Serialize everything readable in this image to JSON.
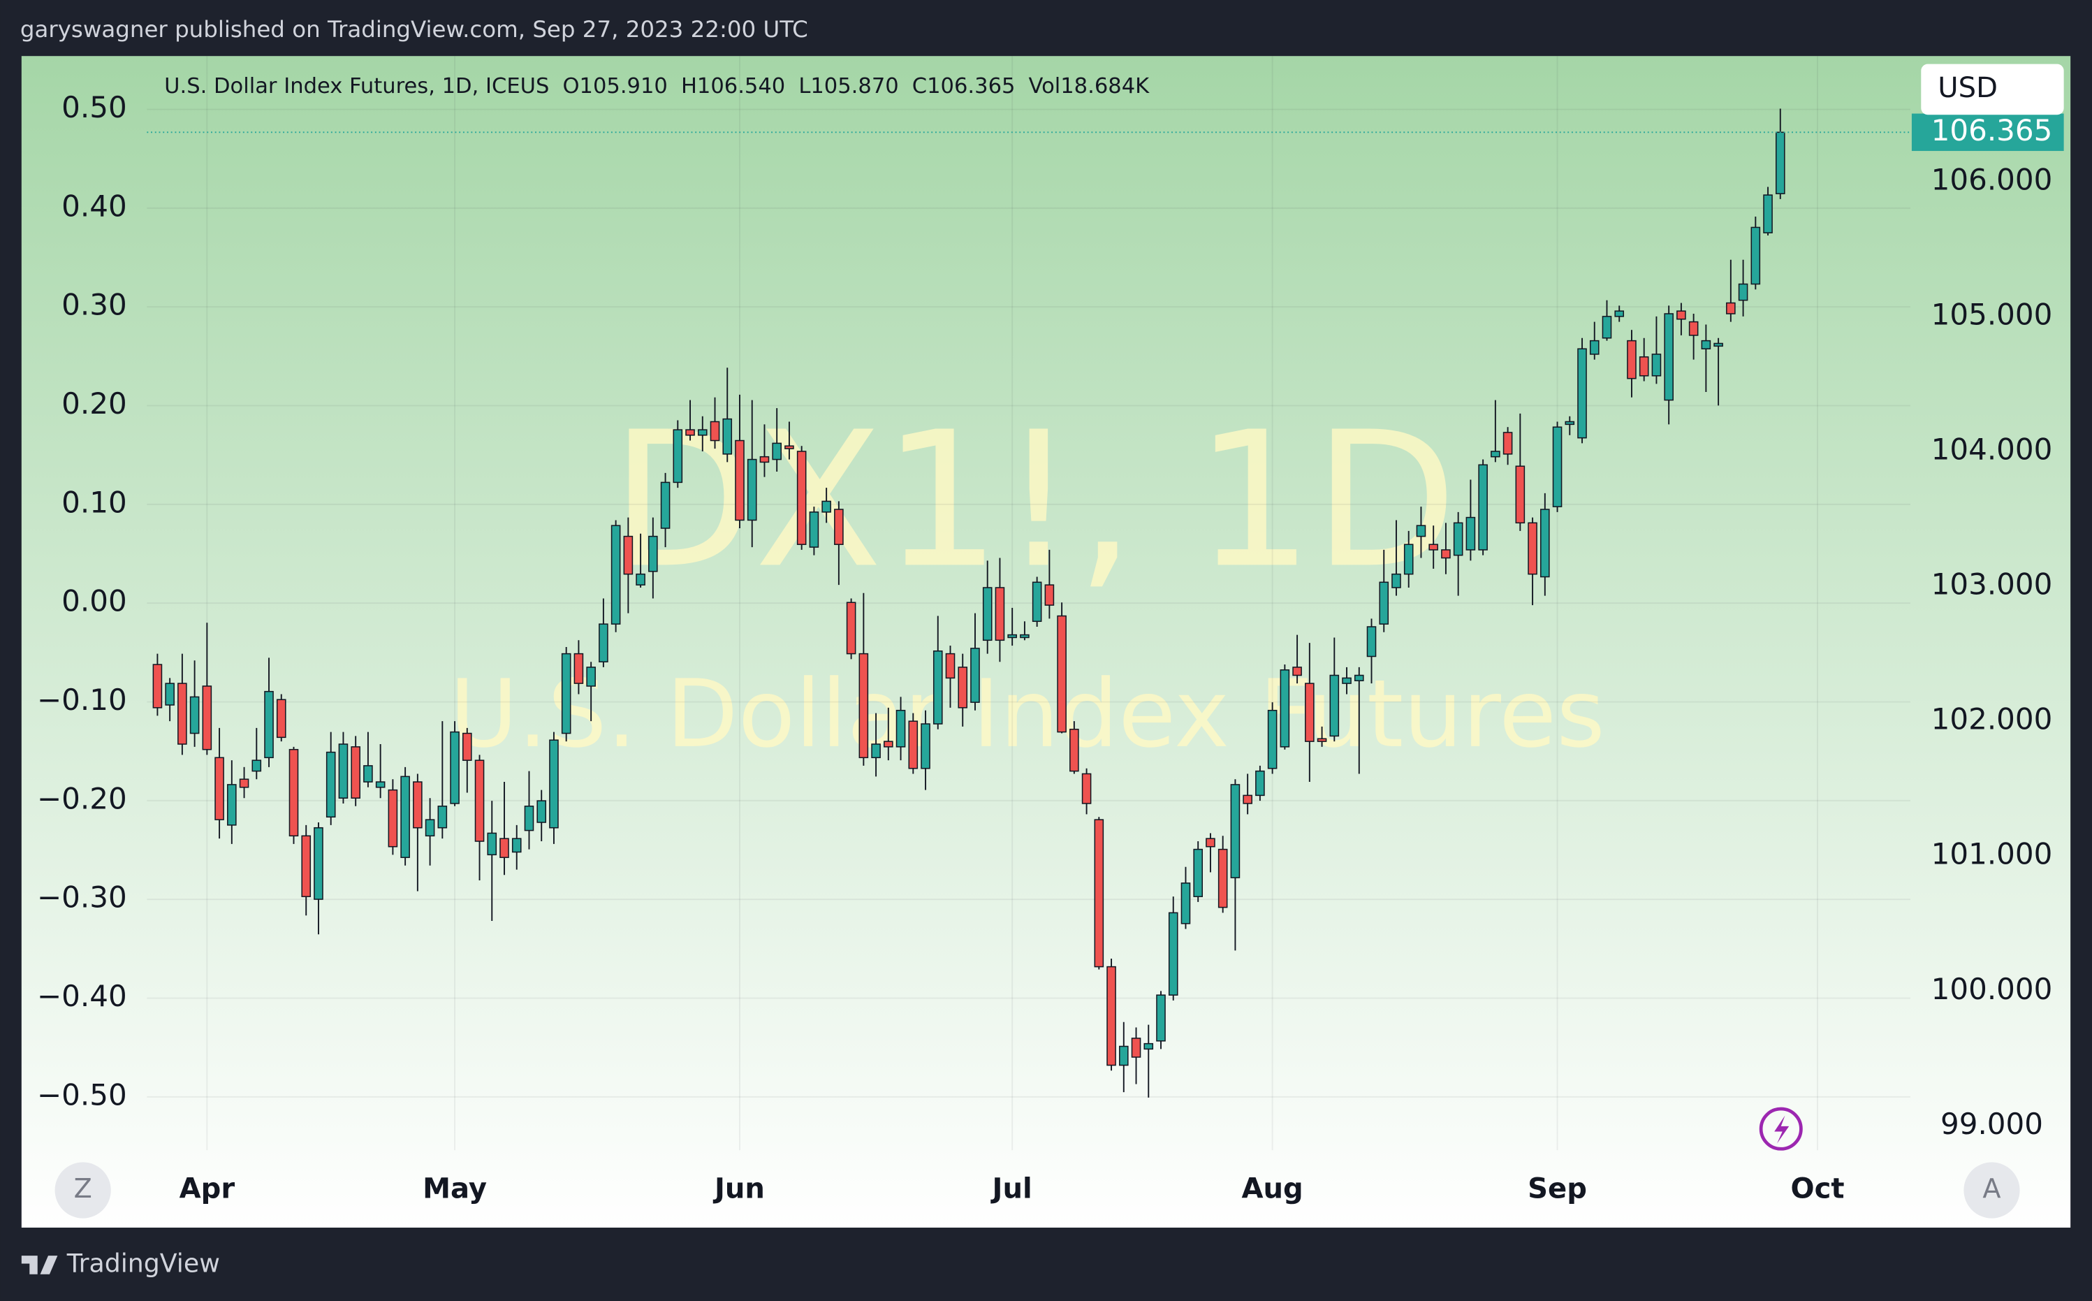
{
  "published": "garyswagner published on TradingView.com, Sep 27, 2023 22:00 UTC",
  "brand": "TradingView",
  "currency": "USD",
  "buttons": [
    "Z",
    "A"
  ],
  "chart_data": {
    "type": "candlestick",
    "title": "U.S. Dollar Index Futures, 1D, ICEUS",
    "ohlc_labels": [
      "O105.910",
      "H106.540",
      "L105.870",
      "C106.365",
      "Vol18.684K"
    ],
    "watermark": {
      "symbol": "DX1!, 1D",
      "description": "U.S. Dollar Index Futures"
    },
    "up_color": "#26a69a",
    "down_color": "#ef5350",
    "last_price": 106.365,
    "grid": true,
    "xlim": [
      -0.85,
      141.5
    ],
    "xticks": [
      {
        "value": 4,
        "label": "Apr"
      },
      {
        "value": 24,
        "label": "May"
      },
      {
        "value": 47,
        "label": "Jun"
      },
      {
        "value": 69,
        "label": "Jul"
      },
      {
        "value": 90,
        "label": "Aug"
      },
      {
        "value": 113,
        "label": "Sep"
      },
      {
        "value": 134,
        "label": "Oct"
      }
    ],
    "ylim": [
      98.82,
      106.93
    ],
    "yticks": [
      {
        "value": 106,
        "label": "106.000"
      },
      {
        "value": 105,
        "label": "105.000"
      },
      {
        "value": 104,
        "label": "104.000"
      },
      {
        "value": 103,
        "label": "103.000"
      },
      {
        "value": 102,
        "label": "102.000"
      },
      {
        "value": 101,
        "label": "101.000"
      },
      {
        "value": 100,
        "label": "100.000"
      },
      {
        "value": 99,
        "label": "99.000"
      }
    ],
    "y2lim": [
      -0.554,
      0.554
    ],
    "y2ticks": [
      {
        "value": 0.5,
        "label": "0.50"
      },
      {
        "value": 0.4,
        "label": "0.40"
      },
      {
        "value": 0.3,
        "label": "0.30"
      },
      {
        "value": 0.2,
        "label": "0.20"
      },
      {
        "value": 0.1,
        "label": "0.10"
      },
      {
        "value": 0,
        "label": "0.00"
      },
      {
        "value": -0.1,
        "label": "−0.10"
      },
      {
        "value": -0.2,
        "label": "−0.20"
      },
      {
        "value": -0.3,
        "label": "−0.30"
      },
      {
        "value": -0.4,
        "label": "−0.40"
      },
      {
        "value": -0.5,
        "label": "−0.50"
      }
    ],
    "open": [
      102.42,
      102.12,
      102.28,
      101.91,
      102.26,
      101.73,
      101.23,
      101.57,
      101.63,
      101.73,
      102.16,
      101.79,
      101.15,
      100.68,
      101.29,
      101.43,
      101.81,
      101.55,
      101.51,
      101.49,
      100.99,
      101.55,
      101.15,
      101.21,
      101.39,
      101.91,
      101.71,
      101.01,
      101.13,
      101.03,
      101.19,
      101.25,
      101.21,
      101.91,
      102.5,
      102.26,
      102.44,
      102.72,
      103.37,
      103.01,
      103.11,
      103.43,
      103.77,
      104.16,
      104.12,
      104.22,
      103.98,
      104.08,
      103.49,
      103.96,
      103.94,
      104.04,
      104.0,
      103.29,
      103.55,
      103.57,
      102.88,
      102.5,
      101.73,
      101.85,
      101.81,
      102.0,
      101.65,
      101.98,
      102.5,
      102.4,
      102.14,
      102.6,
      102.99,
      102.62,
      102.62,
      102.74,
      103.01,
      102.78,
      101.94,
      101.61,
      101.27,
      100.18,
      99.45,
      99.65,
      99.57,
      99.63,
      99.97,
      100.5,
      100.7,
      101.13,
      101.05,
      100.84,
      101.45,
      101.45,
      101.65,
      101.81,
      102.4,
      102.28,
      101.87,
      101.89,
      102.28,
      102.3,
      102.48,
      102.72,
      102.99,
      103.09,
      103.37,
      103.31,
      103.27,
      103.23,
      103.27,
      103.27,
      103.96,
      104.14,
      103.89,
      103.47,
      103.07,
      103.59,
      104.2,
      104.1,
      104.72,
      104.84,
      105.0,
      104.82,
      104.7,
      104.56,
      104.38,
      105.04,
      104.96,
      104.76,
      104.78,
      105.1,
      105.12,
      105.24,
      105.62,
      105.91
    ],
    "high": [
      102.5,
      102.32,
      102.5,
      102.45,
      102.73,
      101.95,
      101.71,
      101.66,
      101.95,
      102.47,
      102.2,
      101.81,
      101.23,
      101.25,
      101.92,
      101.92,
      101.89,
      101.92,
      101.83,
      101.57,
      101.66,
      101.61,
      101.43,
      102.0,
      102.0,
      101.95,
      101.75,
      101.41,
      101.55,
      101.23,
      101.63,
      101.49,
      101.92,
      102.55,
      102.6,
      102.44,
      102.91,
      103.49,
      103.51,
      103.39,
      103.51,
      103.84,
      104.23,
      104.38,
      104.26,
      104.4,
      104.62,
      104.42,
      104.38,
      104.2,
      104.32,
      104.22,
      104.04,
      103.59,
      103.73,
      103.63,
      102.91,
      102.95,
      102.06,
      102.1,
      102.18,
      102.06,
      102.08,
      102.78,
      102.56,
      102.5,
      102.8,
      103.19,
      103.21,
      102.84,
      102.74,
      103.07,
      103.27,
      102.88,
      102.0,
      101.65,
      101.29,
      100.24,
      99.77,
      99.73,
      99.75,
      100.0,
      100.7,
      100.92,
      101.11,
      101.17,
      101.15,
      101.57,
      101.61,
      101.67,
      102.14,
      102.42,
      102.64,
      102.58,
      101.96,
      102.62,
      102.4,
      102.4,
      102.76,
      103.27,
      103.49,
      103.41,
      103.59,
      103.45,
      103.47,
      103.55,
      103.79,
      103.94,
      104.38,
      104.18,
      104.28,
      103.51,
      103.69,
      104.22,
      104.26,
      104.84,
      104.96,
      105.12,
      105.08,
      104.9,
      104.84,
      105.0,
      105.08,
      105.1,
      105.02,
      104.94,
      104.84,
      105.42,
      105.42,
      105.74,
      105.96,
      106.54
    ],
    "low": [
      102.04,
      102.0,
      101.75,
      101.81,
      101.75,
      101.13,
      101.09,
      101.43,
      101.57,
      101.66,
      101.85,
      101.09,
      100.56,
      100.42,
      101.23,
      101.39,
      101.37,
      101.51,
      101.43,
      101.01,
      100.93,
      100.74,
      100.93,
      101.13,
      101.37,
      101.47,
      100.82,
      100.52,
      100.86,
      100.9,
      101.05,
      101.11,
      101.09,
      101.85,
      102.2,
      102.0,
      102.4,
      102.66,
      102.8,
      102.99,
      102.91,
      103.29,
      103.73,
      104.08,
      104.0,
      104.02,
      103.92,
      103.43,
      103.29,
      103.81,
      103.85,
      103.94,
      103.27,
      103.23,
      103.47,
      103.01,
      102.46,
      101.67,
      101.59,
      101.71,
      101.71,
      101.61,
      101.49,
      101.94,
      102.1,
      101.96,
      102.08,
      102.5,
      102.44,
      102.56,
      102.6,
      102.7,
      102.76,
      101.91,
      101.61,
      101.31,
      100.16,
      99.41,
      99.25,
      99.31,
      99.21,
      99.57,
      99.93,
      100.46,
      100.66,
      100.88,
      100.58,
      100.3,
      101.31,
      101.41,
      101.61,
      101.79,
      102.28,
      101.55,
      101.81,
      101.85,
      102.2,
      101.61,
      102.28,
      102.66,
      102.93,
      102.99,
      103.21,
      103.13,
      103.09,
      102.93,
      103.19,
      103.23,
      103.92,
      103.9,
      103.41,
      102.86,
      102.93,
      103.55,
      104.12,
      104.06,
      104.68,
      104.82,
      104.96,
      104.4,
      104.52,
      104.5,
      104.2,
      104.86,
      104.68,
      104.44,
      104.34,
      104.96,
      105.0,
      105.2,
      105.6,
      105.87
    ],
    "close": [
      102.1,
      102.28,
      101.83,
      102.18,
      101.79,
      101.27,
      101.53,
      101.51,
      101.71,
      102.22,
      101.88,
      101.15,
      100.7,
      101.21,
      101.77,
      101.83,
      101.43,
      101.67,
      101.55,
      101.07,
      101.59,
      101.21,
      101.27,
      101.37,
      101.92,
      101.71,
      101.11,
      101.17,
      100.99,
      101.13,
      101.37,
      101.41,
      101.86,
      102.5,
      102.28,
      102.4,
      102.72,
      103.45,
      103.09,
      103.09,
      103.37,
      103.77,
      104.16,
      104.12,
      104.16,
      104.08,
      104.24,
      103.49,
      103.94,
      103.92,
      104.06,
      104.02,
      103.31,
      103.55,
      103.63,
      103.31,
      102.5,
      101.73,
      101.83,
      101.81,
      102.08,
      101.65,
      101.98,
      102.52,
      102.32,
      102.1,
      102.54,
      102.99,
      102.6,
      102.64,
      102.64,
      103.03,
      102.86,
      101.92,
      101.63,
      101.39,
      100.18,
      99.45,
      99.59,
      99.51,
      99.61,
      99.97,
      100.58,
      100.8,
      101.05,
      101.07,
      100.62,
      101.53,
      101.39,
      101.63,
      102.08,
      102.38,
      102.34,
      101.85,
      101.85,
      102.34,
      102.32,
      102.34,
      102.7,
      103.03,
      103.09,
      103.31,
      103.45,
      103.27,
      103.21,
      103.47,
      103.51,
      103.9,
      104.0,
      103.98,
      103.47,
      103.09,
      103.57,
      104.18,
      104.22,
      104.76,
      104.82,
      105.0,
      105.04,
      104.54,
      104.56,
      104.72,
      105.02,
      104.98,
      104.86,
      104.82,
      104.8,
      105.02,
      105.24,
      105.66,
      105.9,
      106.365
    ]
  }
}
